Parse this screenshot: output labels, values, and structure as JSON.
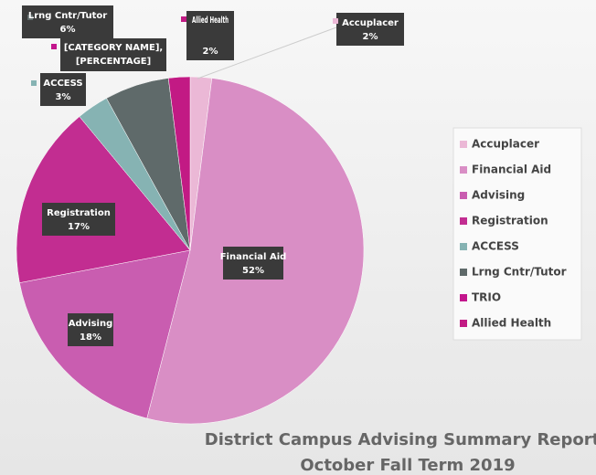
{
  "chart_data": {
    "type": "pie",
    "title": [
      "District Campus Advising Summary Report",
      "October Fall Term 2019"
    ],
    "categories": [
      "Accuplacer",
      "Financial Aid",
      "Advising",
      "Registration",
      "ACCESS",
      "Lrng Cntr/Tutor",
      "TRIO",
      "Allied Health"
    ],
    "values": [
      2,
      52,
      18,
      17,
      3,
      6,
      0,
      2
    ],
    "value_labels": [
      "2%",
      "52%",
      "18%",
      "17%",
      "3%",
      "6%",
      null,
      "2%"
    ],
    "colors": [
      "#ebb8d6",
      "#d98ec5",
      "#c95db0",
      "#c22d91",
      "#86b3b3",
      "#5f6a6a",
      "#c3168c",
      "#c21a84"
    ],
    "annotations": [
      {
        "text": [
          "[CATEGORY NAME],",
          "[PERCENTAGE]"
        ]
      }
    ],
    "legend": "right"
  }
}
